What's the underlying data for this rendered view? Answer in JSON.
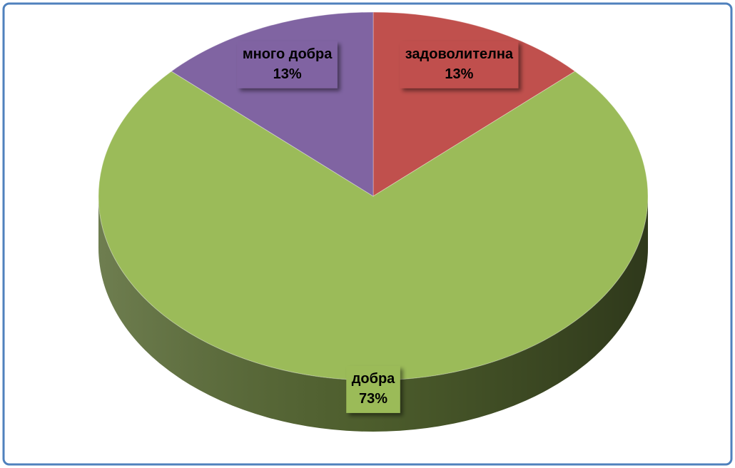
{
  "chart_data": {
    "type": "pie",
    "categories": [
      "задоволителна",
      "добра",
      "много добра"
    ],
    "values": [
      13,
      73,
      13
    ],
    "value_labels": [
      "13%",
      "73%",
      "13%"
    ],
    "colors": [
      "#c0504d",
      "#9bbb59",
      "#8064a2"
    ]
  }
}
